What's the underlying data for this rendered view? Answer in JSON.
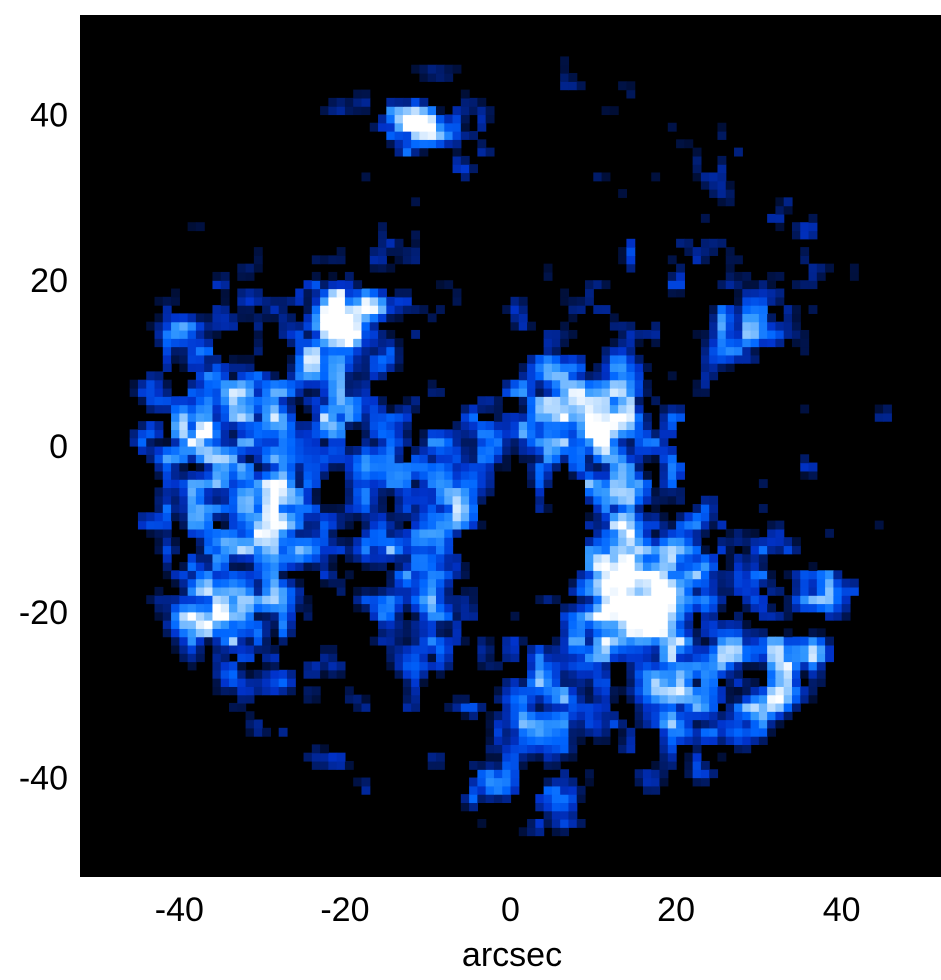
{
  "chart_data": {
    "type": "heatmap",
    "title": "",
    "xlabel": "arcsec",
    "ylabel": "",
    "xlim": [
      -52,
      52
    ],
    "ylim": [
      -52,
      52
    ],
    "x_ticks": [
      -40,
      -20,
      0,
      20,
      40
    ],
    "y_ticks": [
      40,
      20,
      0,
      -20,
      -40
    ],
    "x_tick_labels": [
      "-40",
      "-20",
      "0",
      "20",
      "40"
    ],
    "y_tick_labels": [
      "40",
      "20",
      "0",
      "-20",
      "-40"
    ],
    "grid": false,
    "background_color": "#000000",
    "colormap": [
      "#000000",
      "#001a66",
      "#0033cc",
      "#0066ff",
      "#3399ff",
      "#99ccff",
      "#ffffff"
    ],
    "field_of_view_radius_arcsec": 48,
    "emission_regions": [
      {
        "x": 9,
        "y": 3,
        "intensity": 0.95,
        "size": 9
      },
      {
        "x": -20,
        "y": 17,
        "intensity": 0.9,
        "size": 6
      },
      {
        "x": -12,
        "y": 39,
        "intensity": 0.92,
        "size": 4
      },
      {
        "x": -37,
        "y": 2,
        "intensity": 0.85,
        "size": 7
      },
      {
        "x": -30,
        "y": -8,
        "intensity": 0.7,
        "size": 6
      },
      {
        "x": -36,
        "y": -23,
        "intensity": 0.62,
        "size": 11
      },
      {
        "x": 18,
        "y": -13,
        "intensity": 0.72,
        "size": 9
      },
      {
        "x": 14,
        "y": -19,
        "intensity": 0.65,
        "size": 7
      },
      {
        "x": 23,
        "y": -30,
        "intensity": 0.55,
        "size": 10
      },
      {
        "x": 6,
        "y": -44,
        "intensity": 0.9,
        "size": 3
      },
      {
        "x": -3,
        "y": -41,
        "intensity": 0.75,
        "size": 3
      },
      {
        "x": 27,
        "y": 14,
        "intensity": 0.78,
        "size": 4
      },
      {
        "x": -20,
        "y": 4,
        "intensity": 0.5,
        "size": 10
      },
      {
        "x": -10,
        "y": -7,
        "intensity": 0.45,
        "size": 8
      },
      {
        "x": -10,
        "y": -18,
        "intensity": 0.55,
        "size": 6
      },
      {
        "x": 6,
        "y": -31,
        "intensity": 0.6,
        "size": 7
      },
      {
        "x": 38,
        "y": -17,
        "intensity": 0.6,
        "size": 4
      },
      {
        "x": -23,
        "y": 42,
        "intensity": 0.65,
        "size": 3
      },
      {
        "x": 28,
        "y": 39,
        "intensity": 0.55,
        "size": 3
      },
      {
        "x": 14,
        "y": 23,
        "intensity": 0.6,
        "size": 2
      },
      {
        "x": -40,
        "y": 16,
        "intensity": 0.45,
        "size": 4
      },
      {
        "x": 35,
        "y": -28,
        "intensity": 0.5,
        "size": 6
      },
      {
        "x": -5,
        "y": 37,
        "intensity": 0.4,
        "size": 5
      }
    ]
  }
}
